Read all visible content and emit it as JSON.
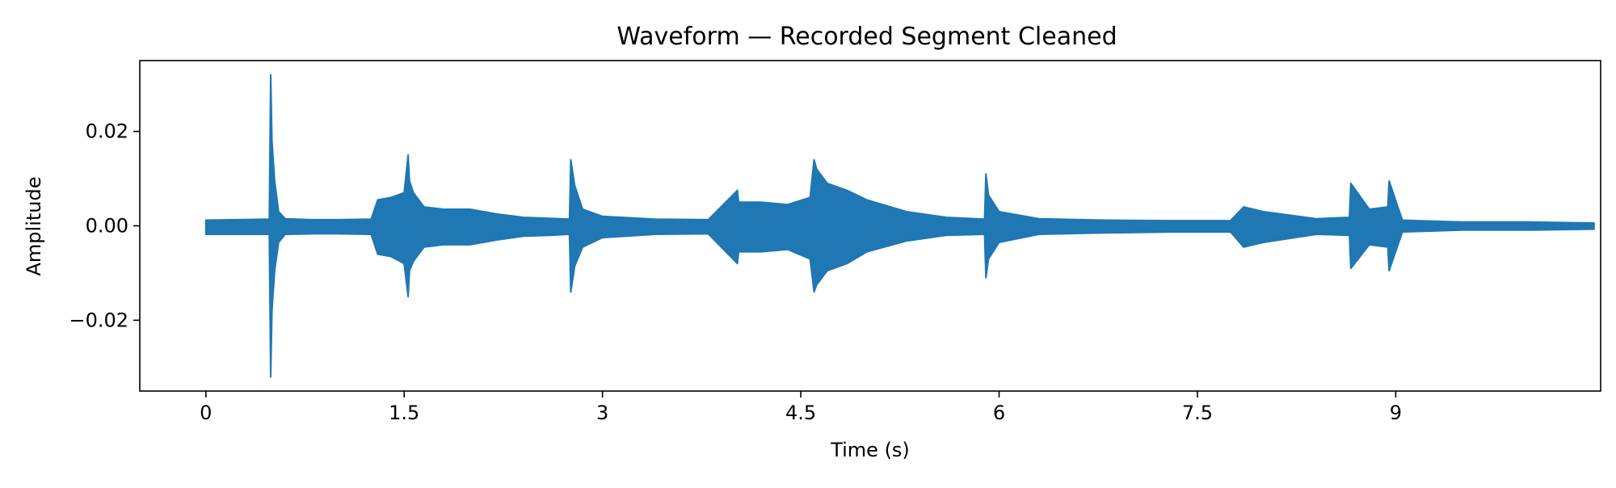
{
  "chart_data": {
    "type": "line",
    "title": "Waveform — Recorded Segment Cleaned",
    "xlabel": "Time (s)",
    "ylabel": "Amplitude",
    "xlim": [
      -0.5,
      10.55
    ],
    "ylim": [
      -0.035,
      0.035
    ],
    "x_ticks": [
      0,
      1.5,
      3,
      4.5,
      6,
      7.5,
      9
    ],
    "x_tick_labels": [
      "0",
      "1.5",
      "3",
      "4.5",
      "6",
      "7.5",
      "9"
    ],
    "y_ticks": [
      0.02,
      0.0,
      -0.02
    ],
    "y_tick_labels": [
      "0.02",
      "0.00",
      "−0.02"
    ],
    "grid": false,
    "line_color": "#1f77b4",
    "series": [
      {
        "x": [
          0,
          0.48,
          0.49,
          0.5,
          0.52,
          0.55,
          0.6,
          0.8,
          1.0,
          1.25,
          1.3,
          1.4,
          1.5,
          1.53,
          1.54,
          1.57,
          1.65,
          1.8,
          2.0,
          2.2,
          2.4,
          2.6,
          2.75,
          2.76,
          2.79,
          2.85,
          3.0,
          3.4,
          3.8,
          4.02,
          4.03,
          4.2,
          4.4,
          4.57,
          4.6,
          4.62,
          4.7,
          4.85,
          5.0,
          5.3,
          5.6,
          5.89,
          5.9,
          5.92,
          6.0,
          6.3,
          6.8,
          7.3,
          7.75,
          7.85,
          8.0,
          8.4,
          8.65,
          8.66,
          8.8,
          8.94,
          8.95,
          9.05,
          9.5,
          10.0,
          10.5
        ],
        "upper": [
          0.0012,
          0.0014,
          0.032,
          0.018,
          0.0095,
          0.003,
          0.0015,
          0.0013,
          0.0013,
          0.0014,
          0.0055,
          0.006,
          0.007,
          0.015,
          0.0095,
          0.007,
          0.004,
          0.0035,
          0.0035,
          0.0025,
          0.0018,
          0.0016,
          0.0014,
          0.014,
          0.0085,
          0.0035,
          0.002,
          0.0014,
          0.0013,
          0.0075,
          0.005,
          0.005,
          0.0045,
          0.006,
          0.014,
          0.012,
          0.009,
          0.0075,
          0.0055,
          0.003,
          0.0018,
          0.0014,
          0.011,
          0.0065,
          0.003,
          0.0015,
          0.0012,
          0.0011,
          0.0011,
          0.004,
          0.003,
          0.0015,
          0.0018,
          0.009,
          0.0035,
          0.004,
          0.0095,
          0.0012,
          0.0008,
          0.0008,
          0.0006
        ],
        "lower": [
          -0.0018,
          -0.0018,
          -0.032,
          -0.018,
          -0.0095,
          -0.0035,
          -0.0018,
          -0.0017,
          -0.0017,
          -0.0018,
          -0.006,
          -0.0065,
          -0.008,
          -0.015,
          -0.0095,
          -0.0075,
          -0.0045,
          -0.004,
          -0.004,
          -0.003,
          -0.0022,
          -0.002,
          -0.0018,
          -0.014,
          -0.0085,
          -0.0045,
          -0.0025,
          -0.0018,
          -0.0017,
          -0.008,
          -0.0055,
          -0.0055,
          -0.005,
          -0.007,
          -0.014,
          -0.0125,
          -0.0095,
          -0.008,
          -0.0055,
          -0.0032,
          -0.002,
          -0.0018,
          -0.011,
          -0.007,
          -0.0035,
          -0.0018,
          -0.0015,
          -0.0013,
          -0.0013,
          -0.0045,
          -0.0035,
          -0.0018,
          -0.002,
          -0.009,
          -0.004,
          -0.0045,
          -0.0095,
          -0.0013,
          -0.0009,
          -0.0009,
          -0.0007
        ]
      }
    ]
  }
}
